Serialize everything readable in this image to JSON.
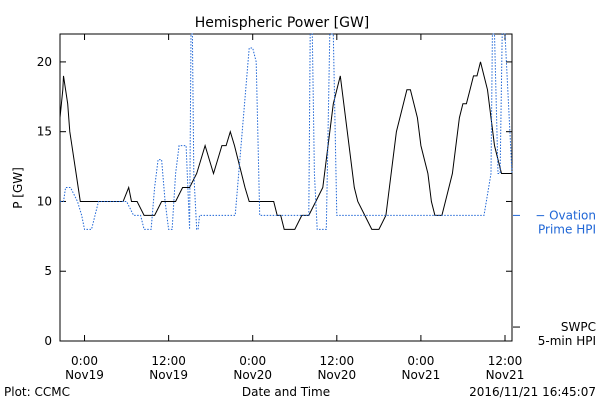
{
  "chart_data": {
    "type": "line",
    "title": "Hemispheric Power [GW]",
    "xlabel": "Date and Time",
    "ylabel": "P [GW]",
    "ylim": [
      0,
      22
    ],
    "yticks": [
      0,
      5,
      10,
      15,
      20
    ],
    "x_unit": "hours since 2016-11-18 00:00 UT",
    "xlim": [
      20.5,
      85.0
    ],
    "xticks": [
      {
        "x": 24,
        "line1": "0:00",
        "line2": "Nov19"
      },
      {
        "x": 36,
        "line1": "12:00",
        "line2": "Nov19"
      },
      {
        "x": 48,
        "line1": "0:00",
        "line2": "Nov20"
      },
      {
        "x": 60,
        "line1": "12:00",
        "line2": "Nov20"
      },
      {
        "x": 72,
        "line1": "0:00",
        "line2": "Nov21"
      },
      {
        "x": 84,
        "line1": "12:00",
        "line2": "Nov21"
      }
    ],
    "series": [
      {
        "name": "SWPC 5-min HPI",
        "label_line1": "SWPC",
        "label_line2": "5-min HPI",
        "color": "#000000",
        "style": "solid",
        "label_y": 1.0,
        "x": [
          20.5,
          20.7,
          20.9,
          21.0,
          21.3,
          21.6,
          21.9,
          22.2,
          22.5,
          22.8,
          23.1,
          23.4,
          23.7,
          24.0,
          25.0,
          26.0,
          27.0,
          28.0,
          29.5,
          30.3,
          30.7,
          31.0,
          31.5,
          32.5,
          33.0,
          34.0,
          35.0,
          36.0,
          37.0,
          38.0,
          39.0,
          40.0,
          40.6,
          41.2,
          41.8,
          42.4,
          43.0,
          43.6,
          44.2,
          44.8,
          45.4,
          45.9,
          46.4,
          46.9,
          47.5,
          48.0,
          48.5,
          49.0,
          49.5,
          50.0,
          50.5,
          51.0,
          51.5,
          52.0,
          52.5,
          53.0,
          53.5,
          54.0,
          55.0,
          56.0,
          57.0,
          58.0,
          58.5,
          59.0,
          59.5,
          60.0,
          60.5,
          61.0,
          61.5,
          62.0,
          62.5,
          63.0,
          64.0,
          65.0,
          66.0,
          67.0,
          67.5,
          68.0,
          68.5,
          69.0,
          69.5,
          70.0,
          70.5,
          71.0,
          71.5,
          72.0,
          72.5,
          73.0,
          73.5,
          74.0,
          74.5,
          75.0,
          75.5,
          76.0,
          76.5,
          77.0,
          77.5,
          78.0,
          78.5,
          79.0,
          79.5,
          80.0,
          80.5,
          81.0,
          81.5,
          82.0,
          82.5,
          83.0,
          83.5,
          84.0,
          84.5,
          85.0
        ],
        "y": [
          16,
          17,
          18,
          19,
          18,
          17,
          15,
          14,
          13,
          12,
          11,
          10,
          10,
          10,
          10,
          10,
          10,
          10,
          10,
          11,
          10,
          10,
          10,
          9,
          9,
          9,
          10,
          10,
          10,
          11,
          11,
          12,
          13,
          14,
          13,
          12,
          13,
          14,
          14,
          15,
          14,
          13,
          12,
          11,
          10,
          10,
          10,
          10,
          10,
          10,
          10,
          10,
          9,
          9,
          8,
          8,
          8,
          8,
          9,
          9,
          10,
          11,
          13,
          15,
          17,
          18,
          19,
          17,
          15,
          13,
          11,
          10,
          9,
          8,
          8,
          9,
          11,
          13,
          15,
          16,
          17,
          18,
          18,
          17,
          16,
          14,
          13,
          12,
          10,
          9,
          9,
          9,
          10,
          11,
          12,
          14,
          16,
          17,
          17,
          18,
          19,
          19,
          20,
          19,
          18,
          16,
          14,
          13,
          12,
          12,
          12,
          12
        ]
      },
      {
        "name": "Ovation Prime HPI",
        "label_line1": "− Ovation",
        "label_line2": "Prime HPI",
        "color": "#1f66d6",
        "style": "dotted",
        "label_y": 9.0,
        "x": [
          20.5,
          21.0,
          21.3,
          21.6,
          22.0,
          23.0,
          23.6,
          24.0,
          25.0,
          26.0,
          26.5,
          27.0,
          28.0,
          29.0,
          30.0,
          31.0,
          31.5,
          32.0,
          32.5,
          33.0,
          33.5,
          34.0,
          34.5,
          35.0,
          35.5,
          36.0,
          36.5,
          37.0,
          37.5,
          38.0,
          38.5,
          39.0,
          39.2,
          39.4,
          39.6,
          40.0,
          40.2,
          40.4,
          40.6,
          41.0,
          41.4,
          42.0,
          42.5,
          43.0,
          43.5,
          44.0,
          44.5,
          45.0,
          45.5,
          46.0,
          46.5,
          47.0,
          47.5,
          48.0,
          48.5,
          49.0,
          49.5,
          50.0,
          51.0,
          52.0,
          53.0,
          54.0,
          55.0,
          56.0,
          56.2,
          56.5,
          56.8,
          57.2,
          58.0,
          58.5,
          59.0,
          59.5,
          60.0,
          60.3,
          60.6,
          61.0,
          61.2,
          61.5,
          61.8,
          62.0,
          62.5,
          63.0,
          63.5,
          64.0,
          64.5,
          65.0,
          66.0,
          67.0,
          68.0,
          69.0,
          70.0,
          71.0,
          72.0,
          73.0,
          74.0,
          75.0,
          76.0,
          77.0,
          78.0,
          79.0,
          80.0,
          81.0,
          82.0,
          82.2,
          82.5,
          83.0,
          83.3,
          83.6,
          84.0,
          85.0
        ],
        "y": [
          10,
          10,
          11,
          11,
          11,
          10,
          9,
          8,
          8,
          10,
          10,
          10,
          10,
          10,
          10,
          9,
          9,
          9,
          8,
          8,
          8,
          11,
          13,
          13,
          10,
          8,
          8,
          12,
          14,
          14,
          14,
          8,
          22,
          22,
          12,
          8,
          8,
          9,
          9,
          9,
          9,
          9,
          9,
          9,
          9,
          9,
          9,
          9,
          9,
          12,
          15,
          18,
          21,
          21,
          20,
          9,
          9,
          9,
          9,
          9,
          9,
          9,
          9,
          9,
          22,
          22,
          12,
          8,
          8,
          8,
          22,
          22,
          9,
          9,
          9,
          9,
          9,
          9,
          9,
          9,
          9,
          9,
          9,
          9,
          9,
          9,
          9,
          9,
          9,
          9,
          9,
          9,
          9,
          9,
          9,
          9,
          9,
          9,
          9,
          9,
          9,
          9,
          12,
          22,
          22,
          12,
          12,
          22,
          22,
          12
        ]
      }
    ]
  },
  "footer": {
    "left": "Plot: CCMC",
    "center": "Date and Time",
    "right": "2016/11/21 16:45:07"
  }
}
